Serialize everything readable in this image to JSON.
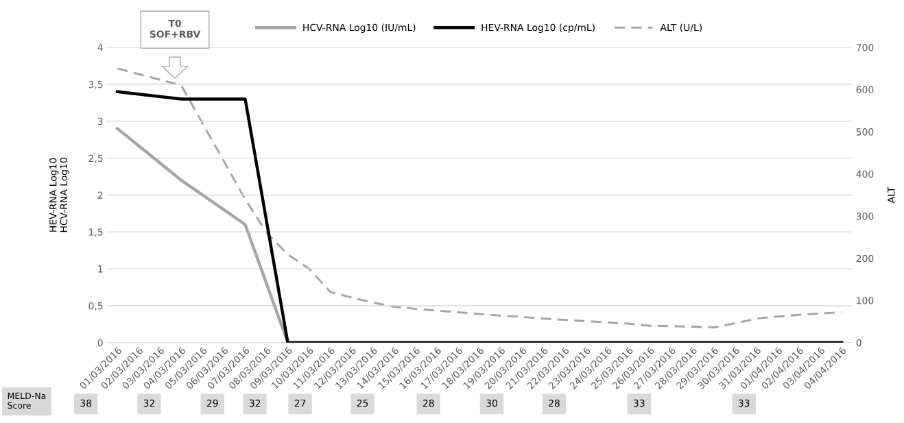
{
  "chart_data": {
    "type": "line",
    "categories": [
      "01/03/2016",
      "02/03/2016",
      "03/03/2016",
      "04/03/2016",
      "05/03/2016",
      "06/03/2016",
      "07/03/2016",
      "08/03/2016",
      "09/03/2016",
      "10/03/2016",
      "11/03/2016",
      "12/03/2016",
      "13/03/2016",
      "14/03/2016",
      "15/03/2016",
      "16/03/2016",
      "17/03/2016",
      "18/03/2016",
      "19/03/2016",
      "20/03/2016",
      "21/03/2016",
      "22/03/2016",
      "23/03/2016",
      "24/03/2016",
      "25/03/2016",
      "26/03/2016",
      "27/03/2016",
      "28/03/2016",
      "29/03/2016",
      "30/03/2016",
      "31/03/2016",
      "01/04/2016",
      "02/04/2016",
      "03/04/2016",
      "04/04/2016"
    ],
    "series": [
      {
        "name": "HCV-RNA Log10 (IU/mL)",
        "color": "#a6a6a6",
        "line_style": "solid",
        "values": [
          2.9,
          null,
          null,
          2.2,
          null,
          null,
          1.6,
          null,
          0,
          null,
          null,
          null,
          null,
          null,
          null,
          null,
          null,
          null,
          null,
          null,
          null,
          null,
          null,
          null,
          null,
          null,
          null,
          null,
          null,
          null,
          null,
          null,
          null,
          null,
          null
        ]
      },
      {
        "name": "HEV-RNA Log10 (cp/mL)",
        "color": "#000000",
        "line_style": "solid",
        "values": [
          3.4,
          null,
          null,
          3.3,
          null,
          null,
          3.3,
          null,
          0,
          null,
          null,
          null,
          null,
          null,
          null,
          null,
          null,
          null,
          null,
          null,
          null,
          null,
          null,
          null,
          null,
          null,
          null,
          null,
          null,
          null,
          null,
          null,
          null,
          null,
          0
        ]
      },
      {
        "name": "ALT (U/L)",
        "color": "#a6a6a6",
        "line_style": "dashed",
        "axis": "y2",
        "values": [
          650,
          null,
          null,
          610,
          null,
          null,
          340,
          261,
          209,
          175,
          120,
          107,
          95,
          85,
          80,
          76,
          72,
          68,
          64,
          61,
          57,
          54,
          51,
          48,
          45,
          40,
          39,
          38,
          36,
          46,
          57,
          62,
          66,
          69,
          72
        ]
      }
    ],
    "ylabel": "HEV-RNA Log10\nHCV-RNA Log10",
    "y2label": "ALT",
    "ylim": [
      0,
      4
    ],
    "yticks": [
      0,
      {
        "value": 0.5,
        "label": "0,5"
      },
      1,
      {
        "value": 1.5,
        "label": "1,5"
      },
      2,
      {
        "value": 2.5,
        "label": "2,5"
      },
      3,
      {
        "value": 3.5,
        "label": "3,5"
      },
      4
    ],
    "y2lim": [
      0,
      700
    ],
    "y2ticks": [
      0,
      100,
      200,
      300,
      400,
      500,
      600,
      700
    ],
    "grid": "y",
    "legend": "top",
    "marker": "none",
    "annotations": [
      "T0\nSOF+RBV",
      "MELD-Na\nScore",
      "38",
      "32",
      "29",
      "32",
      "27",
      "25",
      "28",
      "30",
      "28",
      "33",
      "33"
    ]
  }
}
